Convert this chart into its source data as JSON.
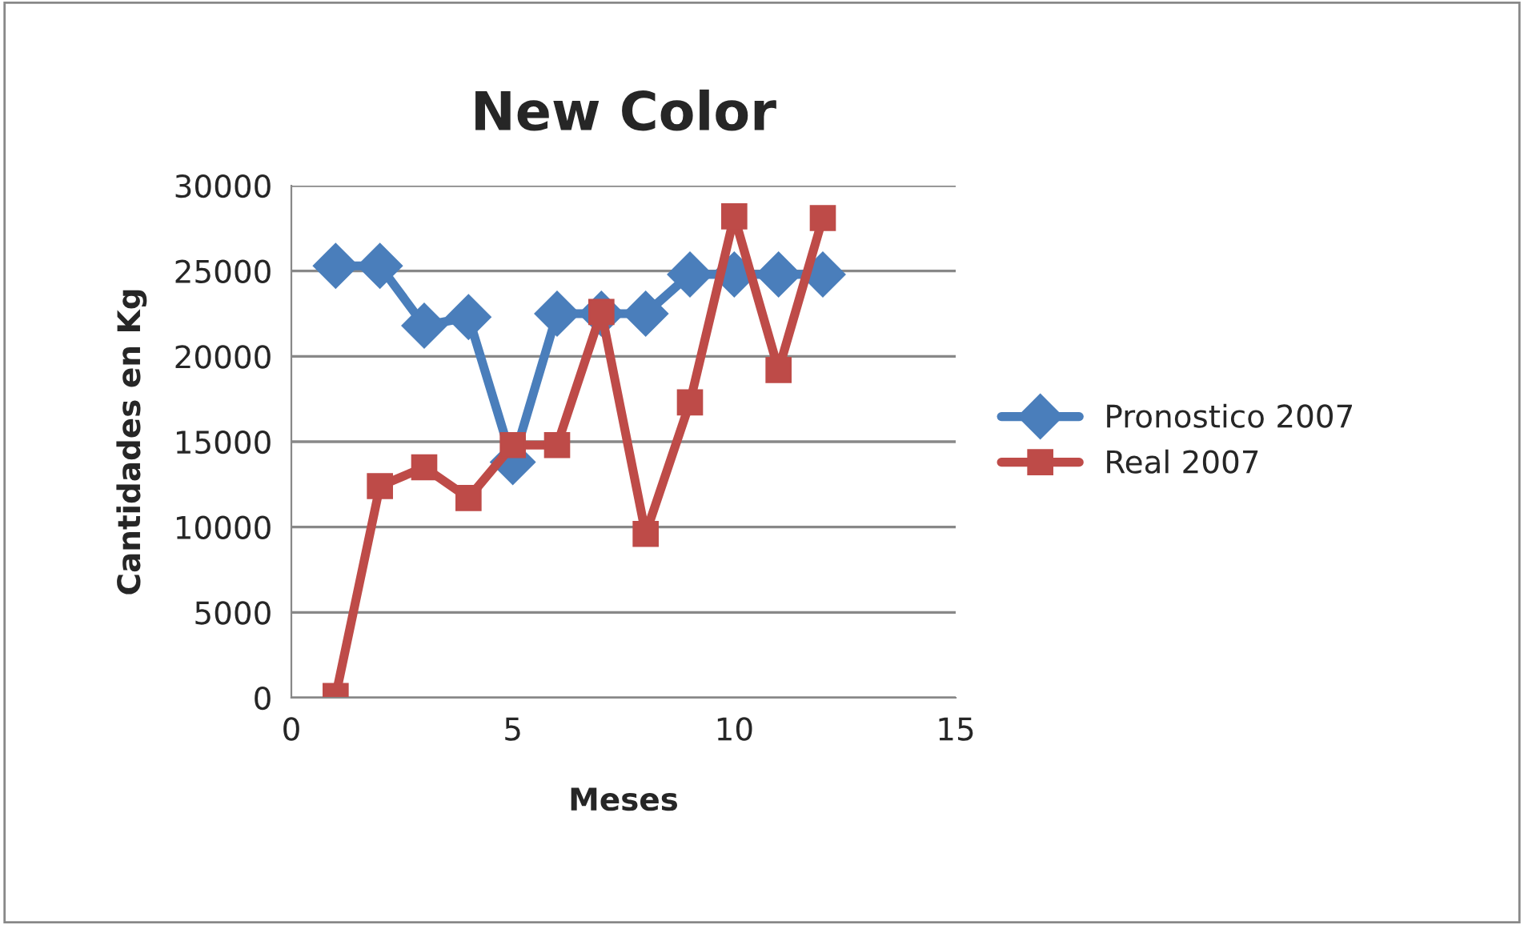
{
  "chart_data": {
    "type": "line",
    "title": "New Color",
    "xlabel": "Meses",
    "ylabel": "Cantidades en Kg",
    "x": [
      1,
      2,
      3,
      4,
      5,
      6,
      7,
      8,
      9,
      10,
      11,
      12
    ],
    "series": [
      {
        "name": "Pronostico 2007",
        "color": "#4a7ebb",
        "marker": "diamond",
        "values": [
          25300,
          25300,
          21800,
          22300,
          13800,
          22500,
          22500,
          22500,
          24800,
          24800,
          24800,
          24800
        ]
      },
      {
        "name": "Real 2007",
        "color": "#be4b48",
        "marker": "square",
        "values": [
          100,
          12400,
          13500,
          11700,
          14800,
          14800,
          22600,
          9600,
          17300,
          28200,
          19200,
          28100
        ]
      }
    ],
    "xlim": [
      0,
      15
    ],
    "xticks": [
      0,
      5,
      10,
      15
    ],
    "ylim": [
      0,
      30000
    ],
    "yticks": [
      0,
      5000,
      10000,
      15000,
      20000,
      25000,
      30000
    ],
    "grid": "y",
    "legend": "right",
    "line_style": "solid"
  }
}
